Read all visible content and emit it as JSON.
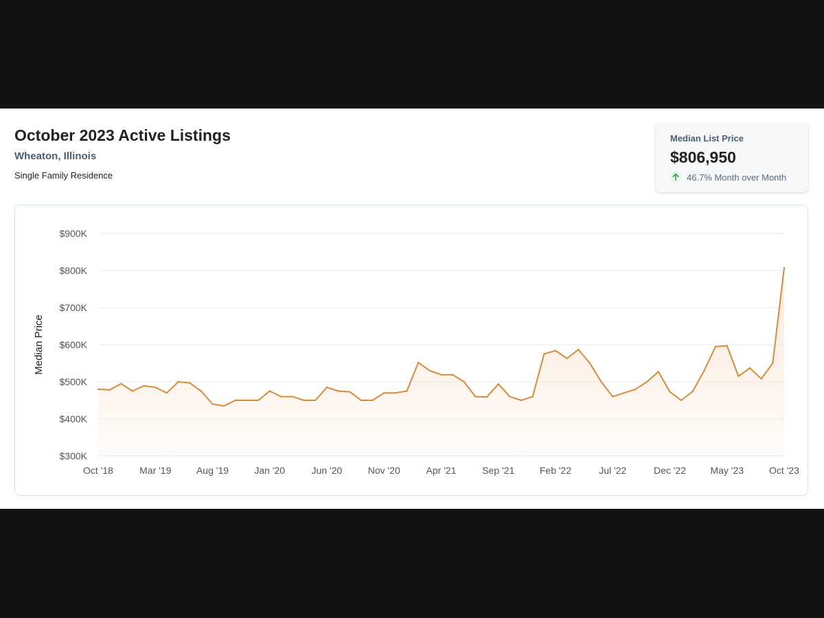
{
  "header": {
    "title": "October 2023 Active Listings",
    "location": "Wheaton, Illinois",
    "property_type": "Single Family Residence"
  },
  "stat_card": {
    "label": "Median List Price",
    "value": "$806,950",
    "change": "46.7% Month over Month",
    "arrow_icon": "arrow-up-icon",
    "arrow_color": "#2f9e44"
  },
  "colors": {
    "line": "#d98a3a",
    "fill": "#fbe7d6",
    "grid": "#dfe8ee",
    "tick_text": "#555555"
  },
  "chart_data": {
    "type": "area",
    "ylabel": "Median Price",
    "ylim": [
      300000,
      900000
    ],
    "yticks": [
      300000,
      400000,
      500000,
      600000,
      700000,
      800000,
      900000
    ],
    "ytick_labels": [
      "$300K",
      "$400K",
      "$500K",
      "$600K",
      "$700K",
      "$800K",
      "$900K"
    ],
    "xtick_labels": [
      "Oct '18",
      "Mar '19",
      "Aug '19",
      "Jan '20",
      "Jun '20",
      "Nov '20",
      "Apr '21",
      "Sep '21",
      "Feb '22",
      "Jul '22",
      "Dec '22",
      "May '23",
      "Oct '23"
    ],
    "xtick_months": [
      "2018-10",
      "2019-03",
      "2019-08",
      "2020-01",
      "2020-06",
      "2020-11",
      "2021-04",
      "2021-09",
      "2022-02",
      "2022-07",
      "2022-12",
      "2023-05",
      "2023-10"
    ],
    "grid": true,
    "series": [
      {
        "points": [
          [
            "2018-10",
            480000
          ],
          [
            "2018-11",
            478000
          ],
          [
            "2018-12",
            495000
          ],
          [
            "2019-01",
            475000
          ],
          [
            "2019-02",
            489000
          ],
          [
            "2019-03",
            485000
          ],
          [
            "2019-04",
            470000
          ],
          [
            "2019-05",
            500000
          ],
          [
            "2019-06",
            497000
          ],
          [
            "2019-07",
            475000
          ],
          [
            "2019-08",
            440000
          ],
          [
            "2019-09",
            435000
          ],
          [
            "2019-10",
            450000
          ],
          [
            "2019-11",
            450000
          ],
          [
            "2019-12",
            450000
          ],
          [
            "2020-01",
            475000
          ],
          [
            "2020-02",
            460000
          ],
          [
            "2020-03",
            460000
          ],
          [
            "2020-04",
            450000
          ],
          [
            "2020-05",
            450000
          ],
          [
            "2020-06",
            485000
          ],
          [
            "2020-07",
            475000
          ],
          [
            "2020-08",
            473000
          ],
          [
            "2020-09",
            450000
          ],
          [
            "2020-10",
            450000
          ],
          [
            "2020-11",
            470000
          ],
          [
            "2020-12",
            470000
          ],
          [
            "2021-01",
            475000
          ],
          [
            "2021-02",
            552000
          ],
          [
            "2021-03",
            530000
          ],
          [
            "2021-04",
            519000
          ],
          [
            "2021-05",
            519000
          ],
          [
            "2021-06",
            500000
          ],
          [
            "2021-07",
            460000
          ],
          [
            "2021-08",
            459000
          ],
          [
            "2021-09",
            494000
          ],
          [
            "2021-10",
            460000
          ],
          [
            "2021-11",
            450000
          ],
          [
            "2021-12",
            460000
          ],
          [
            "2022-01",
            575000
          ],
          [
            "2022-02",
            584000
          ],
          [
            "2022-03",
            563000
          ],
          [
            "2022-04",
            587000
          ],
          [
            "2022-05",
            550000
          ],
          [
            "2022-06",
            500000
          ],
          [
            "2022-07",
            460000
          ],
          [
            "2022-08",
            470000
          ],
          [
            "2022-09",
            480000
          ],
          [
            "2022-10",
            500000
          ],
          [
            "2022-11",
            527000
          ],
          [
            "2022-12",
            473000
          ],
          [
            "2023-01",
            450000
          ],
          [
            "2023-02",
            474000
          ],
          [
            "2023-03",
            530000
          ],
          [
            "2023-04",
            595000
          ],
          [
            "2023-05",
            597000
          ],
          [
            "2023-06",
            515000
          ],
          [
            "2023-07",
            537000
          ],
          [
            "2023-08",
            508000
          ],
          [
            "2023-09",
            550000
          ],
          [
            "2023-10",
            806950
          ]
        ]
      }
    ]
  }
}
